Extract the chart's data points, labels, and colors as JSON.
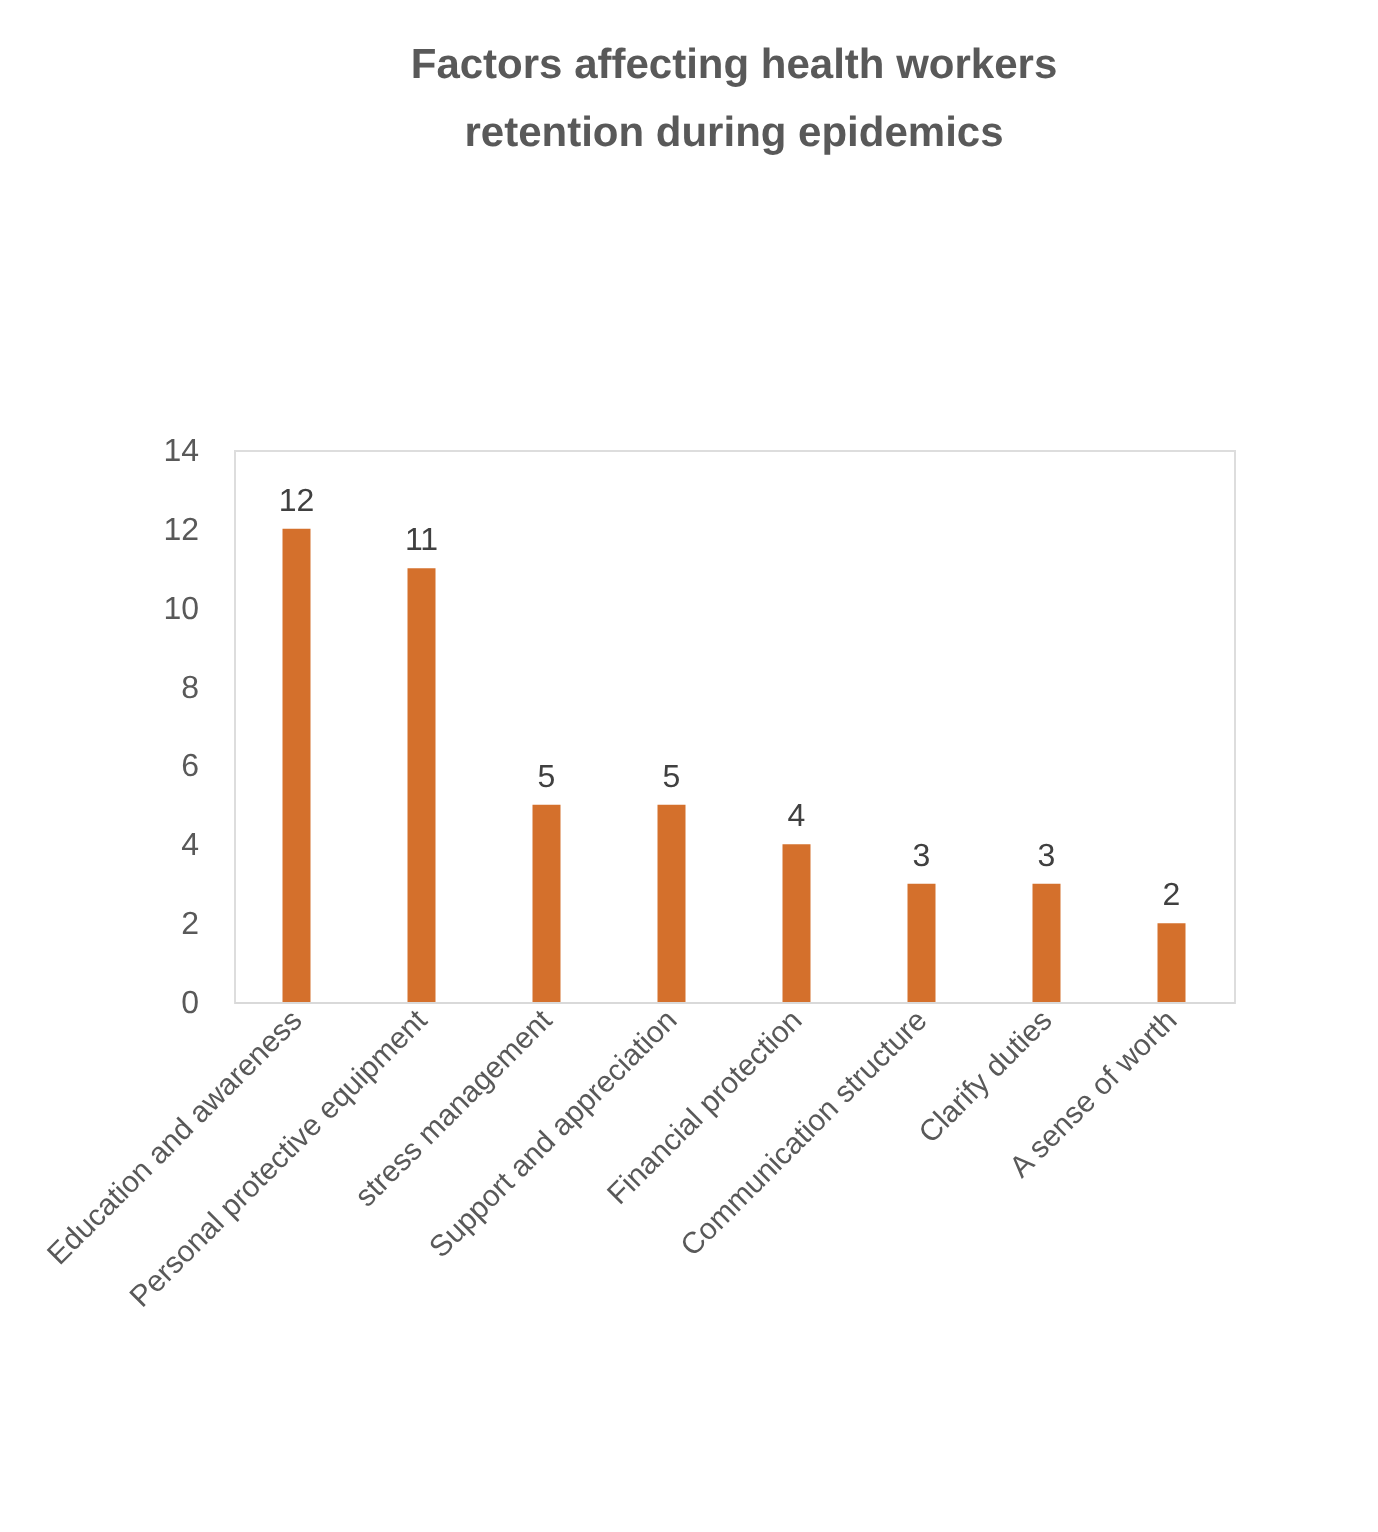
{
  "chart_data": {
    "type": "bar",
    "title": "Factors affecting health workers retention during epidemics",
    "categories": [
      "Education and awareness",
      "Personal protective equipment",
      "stress management",
      "Support and appreciation",
      "Financial protection",
      "Communication structure",
      "Clarify duties",
      "A sense of worth"
    ],
    "values": [
      12,
      11,
      5,
      5,
      4,
      3,
      3,
      2
    ],
    "color": "#d4702c",
    "ylim": [
      0,
      14
    ],
    "yticks": [
      0,
      2,
      4,
      6,
      8,
      10,
      12,
      14
    ],
    "data_labels": true,
    "grid": false
  }
}
